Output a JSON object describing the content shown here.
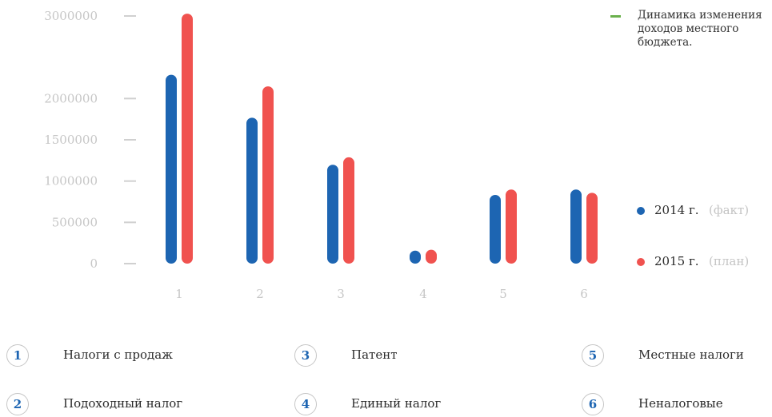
{
  "chart_data": {
    "type": "bar",
    "title": "",
    "xlabel": "",
    "ylabel": "",
    "ylim": [
      0,
      3000000
    ],
    "yticks": [
      "0",
      "500000",
      "1000000",
      "1500000",
      "2000000",
      "3000000"
    ],
    "yticks_values": [
      0,
      500000,
      1000000,
      1500000,
      2000000,
      3000000
    ],
    "categories": [
      "1",
      "2",
      "3",
      "4",
      "5",
      "6"
    ],
    "series": [
      {
        "name": "2014 г.",
        "note": "(факт)",
        "color": "#1d65b2",
        "values": [
          2220000,
          1700000,
          1130000,
          90000,
          765000,
          830000
        ]
      },
      {
        "name": "2015 г.",
        "note": "(план)",
        "color": "#f0524f",
        "values": [
          2960000,
          2080000,
          1220000,
          100000,
          830000,
          790000
        ]
      }
    ],
    "grid": false,
    "legend": "right"
  },
  "note": {
    "text": "Динамика изменения доходов местного бюджета.",
    "color": "#6ab04c"
  },
  "categories_legend": [
    {
      "num": "1",
      "label": "Налоги с продаж"
    },
    {
      "num": "2",
      "label": "Подоходный налог"
    },
    {
      "num": "3",
      "label": "Патент"
    },
    {
      "num": "4",
      "label": "Единый налог"
    },
    {
      "num": "5",
      "label": "Местные налоги"
    },
    {
      "num": "6",
      "label": "Неналоговые"
    }
  ]
}
